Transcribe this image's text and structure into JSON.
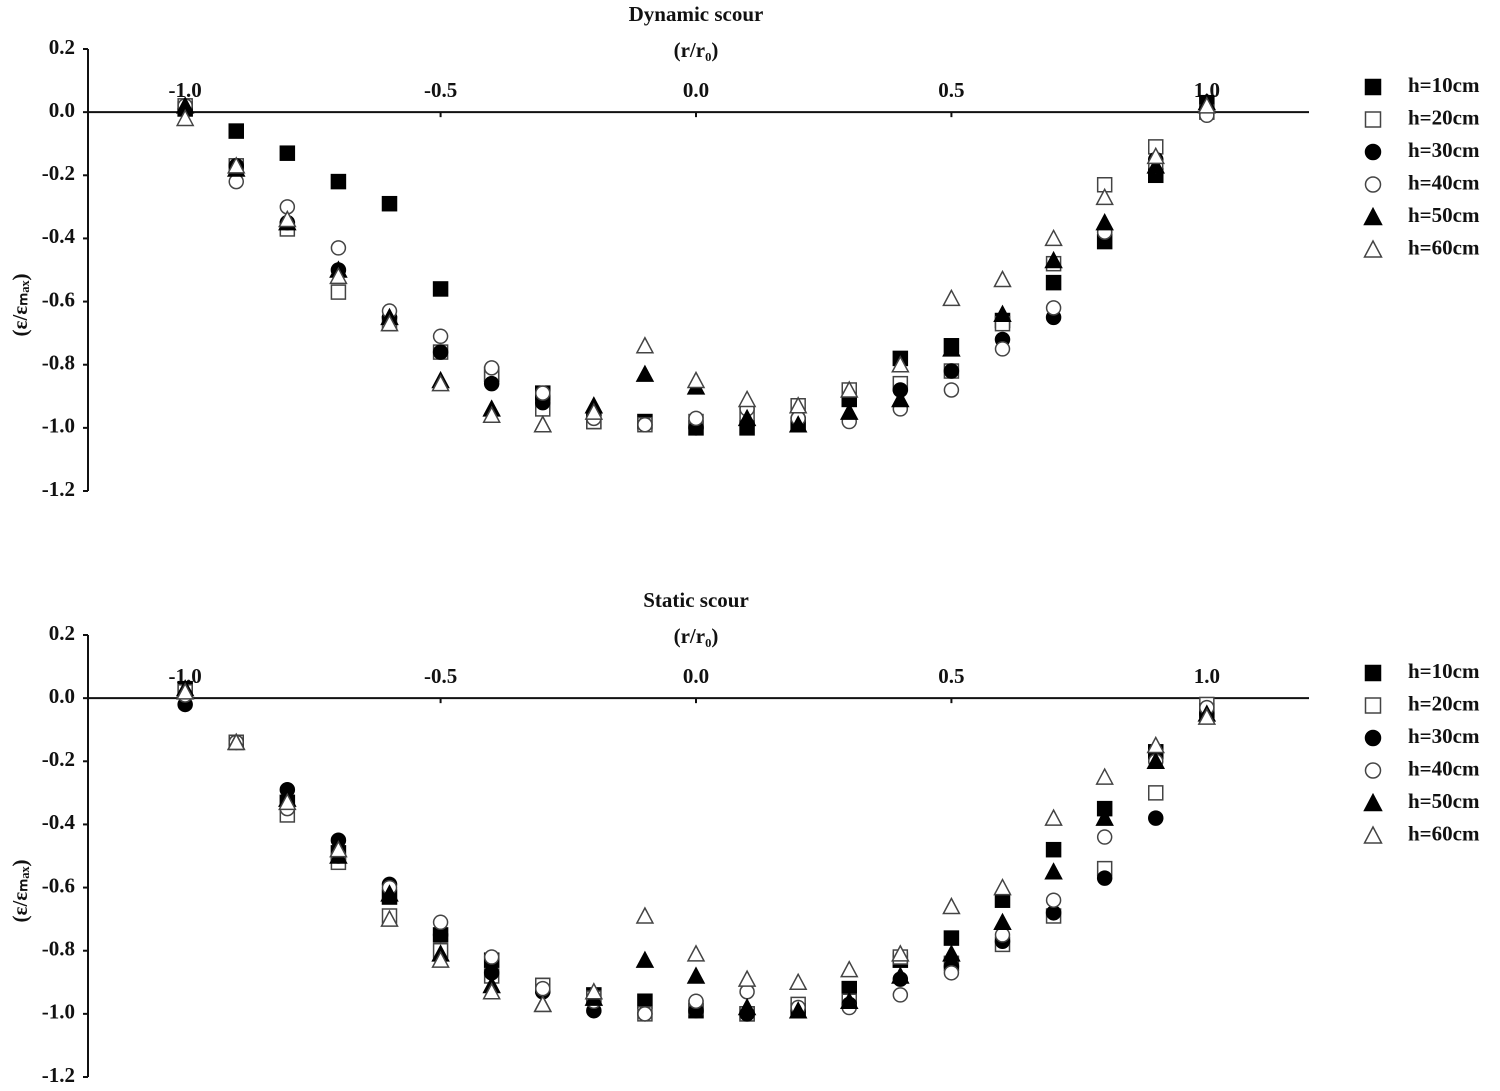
{
  "chart_data": [
    {
      "type": "scatter",
      "title": "Dynamic scour",
      "x_label": "(r/r₀)",
      "y_label": "(ε/εₘₐₓ)",
      "x": [
        -1.0,
        -0.9,
        -0.8,
        -0.7,
        -0.6,
        -0.5,
        -0.4,
        -0.3,
        -0.2,
        -0.1,
        0.0,
        0.1,
        0.2,
        0.3,
        0.4,
        0.5,
        0.6,
        0.7,
        0.8,
        0.9,
        1.0
      ],
      "xlim": [
        -1.2,
        1.2
      ],
      "ylim": [
        -1.2,
        0.2
      ],
      "xticks": [
        {
          "value": -1,
          "label": "-1.0"
        },
        -0.5,
        {
          "value": 0,
          "label": "0.0"
        },
        0.5,
        {
          "value": 1,
          "label": "1.0"
        }
      ],
      "yticks": [
        0.2,
        {
          "value": 0,
          "label": "0.0"
        },
        -0.2,
        -0.4,
        -0.6,
        -0.8,
        {
          "value": -1,
          "label": "-1.0"
        },
        -1.2
      ],
      "legend": "right",
      "series": [
        {
          "name": "h=10cm",
          "color": "#000000",
          "marker": "square",
          "filled": true,
          "values": [
            0.01,
            -0.06,
            -0.13,
            -0.22,
            -0.29,
            -0.56,
            -0.83,
            -0.89,
            -0.98,
            -0.98,
            -1.0,
            -1.0,
            -0.99,
            -0.91,
            -0.78,
            -0.74,
            -0.66,
            -0.54,
            -0.41,
            -0.2,
            0.03
          ]
        },
        {
          "name": "h=20cm",
          "color": "#000000",
          "marker": "square",
          "filled": false,
          "values": [
            0.02,
            -0.17,
            -0.37,
            -0.57,
            -0.67,
            -0.76,
            -0.83,
            -0.94,
            -0.98,
            -0.99,
            -0.98,
            -0.96,
            -0.93,
            -0.88,
            -0.86,
            -0.82,
            -0.67,
            -0.48,
            -0.23,
            -0.11,
            0.0
          ]
        },
        {
          "name": "h=30cm",
          "color": "#000000",
          "marker": "circle",
          "filled": true,
          "values": [
            0.01,
            -0.17,
            -0.35,
            -0.5,
            -0.65,
            -0.76,
            -0.86,
            -0.92,
            -0.96,
            -0.99,
            -1.0,
            -0.99,
            -0.97,
            -0.91,
            -0.88,
            -0.82,
            -0.72,
            -0.65,
            -0.38,
            -0.15,
            0.0
          ]
        },
        {
          "name": "h=40cm",
          "color": "#000000",
          "marker": "circle",
          "filled": false,
          "values": [
            0.02,
            -0.22,
            -0.3,
            -0.43,
            -0.63,
            -0.71,
            -0.81,
            -0.89,
            -0.97,
            -0.99,
            -0.97,
            -0.94,
            -0.97,
            -0.98,
            -0.94,
            -0.88,
            -0.75,
            -0.62,
            -0.38,
            -0.17,
            -0.01
          ]
        },
        {
          "name": "h=50cm",
          "color": "#000000",
          "marker": "triangle",
          "filled": true,
          "values": [
            0.02,
            -0.18,
            -0.35,
            -0.5,
            -0.65,
            -0.85,
            -0.94,
            -0.99,
            -0.93,
            -0.83,
            -0.87,
            -0.97,
            -0.99,
            -0.95,
            -0.91,
            -0.75,
            -0.64,
            -0.47,
            -0.35,
            -0.17,
            0.03
          ]
        },
        {
          "name": "h=60cm",
          "color": "#000000",
          "marker": "triangle",
          "filled": false,
          "values": [
            -0.02,
            -0.17,
            -0.34,
            -0.52,
            -0.67,
            -0.86,
            -0.96,
            -0.99,
            -0.95,
            -0.74,
            -0.85,
            -0.91,
            -0.93,
            -0.88,
            -0.8,
            -0.59,
            -0.53,
            -0.4,
            -0.27,
            -0.14,
            0.02
          ]
        }
      ]
    },
    {
      "type": "scatter",
      "title": "Static scour",
      "x_label": "(r/r₀)",
      "y_label": "(ε/εₘₐₓ)",
      "x": [
        -1.0,
        -0.9,
        -0.8,
        -0.7,
        -0.6,
        -0.5,
        -0.4,
        -0.3,
        -0.2,
        -0.1,
        0.0,
        0.1,
        0.2,
        0.3,
        0.4,
        0.5,
        0.6,
        0.7,
        0.8,
        0.9,
        1.0
      ],
      "xlim": [
        -1.2,
        1.2
      ],
      "ylim": [
        -1.2,
        0.2
      ],
      "xticks": [
        {
          "value": -1,
          "label": "-1.0"
        },
        -0.5,
        {
          "value": 0,
          "label": "0.0"
        },
        0.5,
        {
          "value": 1,
          "label": "1.0"
        }
      ],
      "yticks": [
        0.2,
        {
          "value": 0,
          "label": "0.0"
        },
        -0.2,
        -0.4,
        -0.6,
        -0.8,
        {
          "value": -1,
          "label": "-1.0"
        },
        -1.2
      ],
      "legend": "right",
      "series": [
        {
          "name": "h=10cm",
          "color": "#000000",
          "marker": "square",
          "filled": true,
          "values": [
            0.03,
            -0.14,
            -0.33,
            -0.49,
            -0.63,
            -0.75,
            -0.83,
            -0.91,
            -0.94,
            -0.96,
            -0.99,
            -1.0,
            -0.99,
            -0.92,
            -0.83,
            -0.76,
            -0.64,
            -0.48,
            -0.35,
            -0.17,
            -0.04
          ]
        },
        {
          "name": "h=20cm",
          "color": "#000000",
          "marker": "square",
          "filled": false,
          "values": [
            0.02,
            -0.14,
            -0.37,
            -0.52,
            -0.69,
            -0.8,
            -0.88,
            -0.91,
            -0.95,
            -1.0,
            -0.98,
            -1.0,
            -0.97,
            -0.96,
            -0.82,
            -0.84,
            -0.78,
            -0.69,
            -0.54,
            -0.3,
            -0.02
          ]
        },
        {
          "name": "h=30cm",
          "color": "#000000",
          "marker": "circle",
          "filled": true,
          "values": [
            -0.02,
            -0.14,
            -0.29,
            -0.45,
            -0.59,
            -0.75,
            -0.87,
            -0.93,
            -0.99,
            -1.0,
            -0.99,
            -1.0,
            -0.99,
            -0.97,
            -0.89,
            -0.85,
            -0.77,
            -0.68,
            -0.57,
            -0.38,
            -0.05
          ]
        },
        {
          "name": "h=40cm",
          "color": "#000000",
          "marker": "circle",
          "filled": false,
          "values": [
            0.01,
            -0.14,
            -0.35,
            -0.5,
            -0.6,
            -0.71,
            -0.82,
            -0.92,
            -0.96,
            -1.0,
            -0.96,
            -0.93,
            -0.98,
            -0.98,
            -0.94,
            -0.87,
            -0.75,
            -0.64,
            -0.44,
            -0.2,
            -0.03
          ]
        },
        {
          "name": "h=50cm",
          "color": "#000000",
          "marker": "triangle",
          "filled": true,
          "values": [
            0.03,
            -0.14,
            -0.32,
            -0.5,
            -0.62,
            -0.81,
            -0.91,
            -0.97,
            -0.95,
            -0.83,
            -0.88,
            -0.98,
            -0.99,
            -0.96,
            -0.88,
            -0.81,
            -0.71,
            -0.55,
            -0.38,
            -0.2,
            -0.05
          ]
        },
        {
          "name": "h=60cm",
          "color": "#000000",
          "marker": "triangle",
          "filled": false,
          "values": [
            0.02,
            -0.14,
            -0.33,
            -0.48,
            -0.7,
            -0.83,
            -0.93,
            -0.97,
            -0.93,
            -0.69,
            -0.81,
            -0.89,
            -0.9,
            -0.86,
            -0.81,
            -0.66,
            -0.6,
            -0.38,
            -0.25,
            -0.15,
            -0.06
          ]
        }
      ]
    }
  ]
}
